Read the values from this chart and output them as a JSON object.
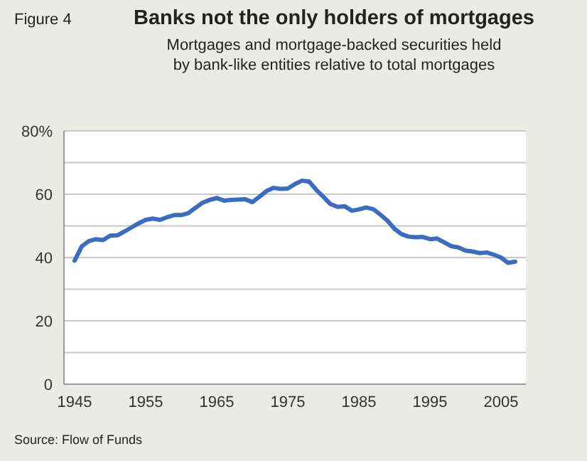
{
  "chart_data": {
    "type": "line",
    "title": "Banks not the only holders of mortgages",
    "subtitle": "Mortgages and mortgage-backed securities held\nby bank-like entities relative to total mortgages",
    "annotations": [
      "Figure 4",
      "Source: Flow of Funds"
    ],
    "x": [
      1945,
      1946,
      1947,
      1948,
      1949,
      1950,
      1951,
      1952,
      1953,
      1954,
      1955,
      1956,
      1957,
      1958,
      1959,
      1960,
      1961,
      1962,
      1963,
      1964,
      1965,
      1966,
      1967,
      1968,
      1969,
      1970,
      1971,
      1972,
      1973,
      1974,
      1975,
      1976,
      1977,
      1978,
      1979,
      1980,
      1981,
      1982,
      1983,
      1984,
      1985,
      1986,
      1987,
      1988,
      1989,
      1990,
      1991,
      1992,
      1993,
      1994,
      1995,
      1996,
      1997,
      1998,
      1999,
      2000,
      2001,
      2002,
      2003,
      2004,
      2005,
      2006,
      2007
    ],
    "series": [
      {
        "color": "#3a6cc0",
        "values": [
          39,
          43.5,
          45.2,
          45.8,
          45.5,
          46.9,
          47,
          48.2,
          49.5,
          50.8,
          51.9,
          52.3,
          51.9,
          52.7,
          53.4,
          53.4,
          54,
          55.7,
          57.3,
          58.2,
          58.8,
          58,
          58.2,
          58.3,
          58.4,
          57.5,
          59.2,
          61,
          62,
          61.7,
          61.8,
          63.2,
          64.3,
          64,
          61.4,
          59.2,
          56.9,
          56,
          56.2,
          54.8,
          55.2,
          55.8,
          55.3,
          53.6,
          51.7,
          49.1,
          47.4,
          46.6,
          46.4,
          46.5,
          45.8,
          46,
          44.8,
          43.6,
          43.2,
          42.2,
          41.9,
          41.4,
          41.6,
          40.9,
          40,
          38.3,
          38.7
        ]
      }
    ],
    "xlim": [
      1943.5,
      2008.5
    ],
    "xticks": [
      1945,
      1955,
      1965,
      1975,
      1985,
      1995,
      2005
    ],
    "ylim": [
      0,
      80
    ],
    "yticks": [
      0,
      {
        "value": 10,
        "label": null
      },
      20,
      {
        "value": 30,
        "label": null
      },
      40,
      {
        "value": 50,
        "label": null
      },
      60,
      {
        "value": 70,
        "label": null
      },
      {
        "value": 80,
        "label": "80%"
      }
    ],
    "grid": "y",
    "marker": "none",
    "line_style": "solid"
  }
}
